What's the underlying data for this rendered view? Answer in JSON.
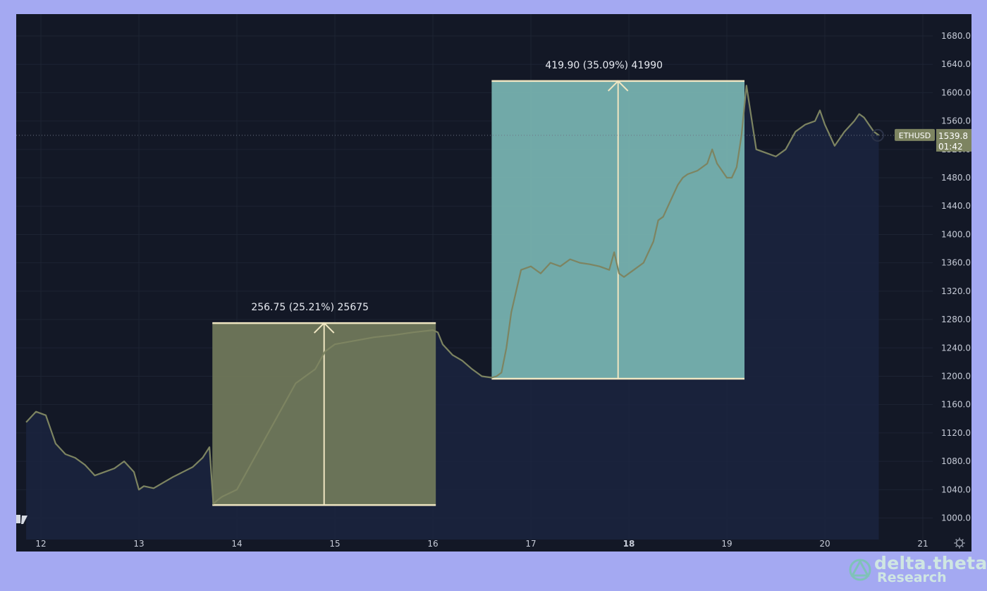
{
  "chart_data": {
    "type": "line",
    "symbol": "ETHUSD",
    "last_price": "1539.8",
    "countdown": "01:42",
    "x_ticks": [
      "12",
      "13",
      "14",
      "15",
      "16",
      "17",
      "18",
      "19",
      "20",
      "21"
    ],
    "x_bold_tick": "18",
    "ylim": [
      980,
      1700
    ],
    "y_ticks": [
      1000,
      1040,
      1080,
      1120,
      1160,
      1200,
      1240,
      1280,
      1320,
      1360,
      1400,
      1440,
      1480,
      1520,
      1560,
      1600,
      1640,
      1680
    ],
    "y_tick_labels": [
      "1000.0",
      "1040.0",
      "1080.0",
      "1120.0",
      "1160.0",
      "1200.0",
      "1240.0",
      "1280.0",
      "1320.0",
      "1360.0",
      "1400.0",
      "1440.0",
      "1480.0",
      "1520.0",
      "1560.0",
      "1600.0",
      "1640.0",
      "1680.0"
    ],
    "series": [
      {
        "x": [
          11.85,
          11.95,
          12.05,
          12.15,
          12.25,
          12.35,
          12.45,
          12.55,
          12.65,
          12.75,
          12.85,
          12.95,
          13.0,
          13.05,
          13.15,
          13.25,
          13.35,
          13.45,
          13.55,
          13.65,
          13.72,
          13.76,
          13.8,
          13.85,
          14.0,
          14.2,
          14.4,
          14.6,
          14.8,
          14.9,
          15.0,
          15.2,
          15.4,
          15.6,
          15.8,
          16.0,
          16.05,
          16.1,
          16.2,
          16.3,
          16.4,
          16.5,
          16.6,
          16.65,
          16.7,
          16.75,
          16.8,
          16.9,
          17.0,
          17.1,
          17.2,
          17.3,
          17.4,
          17.5,
          17.6,
          17.7,
          17.8,
          17.85,
          17.9,
          17.95,
          18.05,
          18.15,
          18.25,
          18.3,
          18.35,
          18.4,
          18.5,
          18.55,
          18.6,
          18.7,
          18.8,
          18.85,
          18.9,
          19.0,
          19.05,
          19.1,
          19.15,
          19.2,
          19.3,
          19.4,
          19.5,
          19.6,
          19.7,
          19.8,
          19.9,
          19.95,
          20.0,
          20.05,
          20.1,
          20.2,
          20.3,
          20.35,
          20.4,
          20.5,
          20.55
        ],
        "y": [
          1135,
          1150,
          1145,
          1105,
          1090,
          1085,
          1075,
          1060,
          1065,
          1070,
          1080,
          1065,
          1040,
          1045,
          1042,
          1050,
          1058,
          1065,
          1072,
          1085,
          1100,
          1020,
          1025,
          1030,
          1040,
          1090,
          1140,
          1190,
          1210,
          1235,
          1245,
          1250,
          1255,
          1258,
          1262,
          1265,
          1262,
          1245,
          1230,
          1222,
          1210,
          1200,
          1198,
          1200,
          1205,
          1240,
          1290,
          1350,
          1355,
          1345,
          1360,
          1355,
          1365,
          1360,
          1358,
          1355,
          1350,
          1375,
          1345,
          1340,
          1350,
          1360,
          1390,
          1420,
          1425,
          1440,
          1470,
          1480,
          1485,
          1490,
          1500,
          1520,
          1500,
          1480,
          1480,
          1495,
          1540,
          1610,
          1520,
          1515,
          1510,
          1520,
          1545,
          1555,
          1560,
          1575,
          1555,
          1540,
          1525,
          1545,
          1560,
          1570,
          1565,
          1545,
          1540
        ]
      }
    ],
    "measurements": [
      {
        "label": "256.75 (25.21%) 25675",
        "x_start": 13.75,
        "x_end": 16.03,
        "y_low": 1018.25,
        "y_high": 1275.0,
        "color": "#6d7659"
      },
      {
        "label": "419.90 (35.09%) 41990",
        "x_start": 16.6,
        "x_end": 19.18,
        "y_low": 1196.5,
        "y_high": 1616.4,
        "color": "#75aeac"
      }
    ]
  },
  "colors": {
    "background": "#131826",
    "page_border": "#a4a9f2",
    "price_line": "#7d8461",
    "area_fill": "#1b2540",
    "label_bg": "#7d8461",
    "grid": "#1d2333",
    "text": "#c7ccd8"
  },
  "watermark": {
    "brand": "delta.theta",
    "sub": "Research",
    "icon": "delta-theta-logo-icon"
  },
  "corner_icon": "tradingview-logo-icon",
  "settings_icon": "gear-icon"
}
